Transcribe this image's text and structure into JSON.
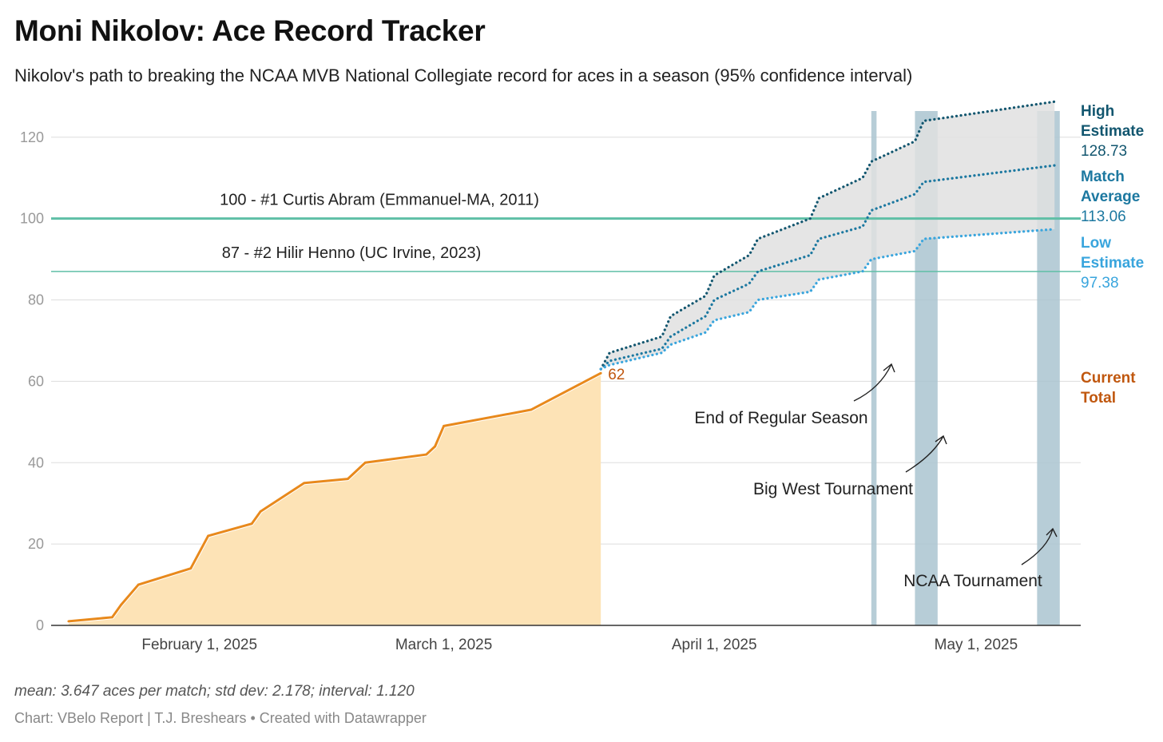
{
  "title": "Moni Nikolov: Ace Record Tracker",
  "subtitle": "Nikolov's path to breaking the NCAA MVB National Collegiate record for aces in a season (95% confidence interval)",
  "note": "mean: 3.647 aces per match; std dev: 2.178; interval: 1.120",
  "source": "Chart: VBelo Report | T.J. Breshears • Created with Datawrapper",
  "colors": {
    "actual_line": "#e8891c",
    "actual_fill": "#fde3b6",
    "high": "#12566f",
    "average": "#1c78a0",
    "low": "#39a5dd",
    "band": "#e0e0e0",
    "reference": "#5fbfa6",
    "shade": "#aac4d0",
    "current_label": "#c0570e"
  },
  "chart_data": {
    "type": "line",
    "ylim": [
      0,
      128
    ],
    "yticks": [
      "0",
      "20",
      "40",
      "60",
      "80",
      "100",
      "120"
    ],
    "xticks": [
      {
        "label": "February 1, 2025",
        "date": "2025-02-01"
      },
      {
        "label": "March 1, 2025",
        "date": "2025-03-01"
      },
      {
        "label": "April 1, 2025",
        "date": "2025-04-01"
      },
      {
        "label": "May 1, 2025",
        "date": "2025-05-01"
      }
    ],
    "reference_lines": [
      {
        "value": 100,
        "label": "100 - #1 Curtis Abram (Emmanuel-MA, 2011)"
      },
      {
        "value": 87,
        "label": "87 - #2 Hilir Henno (UC Irvine, 2023)"
      }
    ],
    "actual": {
      "name": "Current Total",
      "final_value": "62",
      "points": [
        [
          "2025-01-17",
          1
        ],
        [
          "2025-01-22",
          2
        ],
        [
          "2025-01-23",
          5
        ],
        [
          "2025-01-25",
          10
        ],
        [
          "2025-01-31",
          14
        ],
        [
          "2025-02-02",
          22
        ],
        [
          "2025-02-07",
          25
        ],
        [
          "2025-02-08",
          28
        ],
        [
          "2025-02-13",
          35
        ],
        [
          "2025-02-18",
          36
        ],
        [
          "2025-02-20",
          40
        ],
        [
          "2025-02-27",
          42
        ],
        [
          "2025-02-28",
          44
        ],
        [
          "2025-03-01",
          49
        ],
        [
          "2025-03-11",
          53
        ],
        [
          "2025-03-19",
          62
        ]
      ]
    },
    "projections": [
      {
        "name": "High Estimate",
        "final_value": "128.73",
        "points": [
          [
            "2025-03-19",
            63
          ],
          [
            "2025-03-20",
            67
          ],
          [
            "2025-03-26",
            71
          ],
          [
            "2025-03-27",
            76
          ],
          [
            "2025-03-31",
            81
          ],
          [
            "2025-04-01",
            86
          ],
          [
            "2025-04-05",
            91
          ],
          [
            "2025-04-06",
            95
          ],
          [
            "2025-04-12",
            100
          ],
          [
            "2025-04-13",
            105
          ],
          [
            "2025-04-18",
            110
          ],
          [
            "2025-04-19",
            114
          ],
          [
            "2025-04-24",
            119
          ],
          [
            "2025-04-25",
            124
          ],
          [
            "2025-05-10",
            128.73
          ]
        ]
      },
      {
        "name": "Match Average",
        "final_value": "113.06",
        "points": [
          [
            "2025-03-19",
            63
          ],
          [
            "2025-03-20",
            65
          ],
          [
            "2025-03-26",
            68
          ],
          [
            "2025-03-27",
            71
          ],
          [
            "2025-03-31",
            76
          ],
          [
            "2025-04-01",
            80
          ],
          [
            "2025-04-05",
            84
          ],
          [
            "2025-04-06",
            87
          ],
          [
            "2025-04-12",
            91
          ],
          [
            "2025-04-13",
            95
          ],
          [
            "2025-04-18",
            98
          ],
          [
            "2025-04-19",
            102
          ],
          [
            "2025-04-24",
            106
          ],
          [
            "2025-04-25",
            109
          ],
          [
            "2025-05-10",
            113.06
          ]
        ]
      },
      {
        "name": "Low Estimate",
        "final_value": "97.38",
        "points": [
          [
            "2025-03-19",
            63
          ],
          [
            "2025-03-20",
            64
          ],
          [
            "2025-03-26",
            67
          ],
          [
            "2025-03-27",
            69
          ],
          [
            "2025-03-31",
            72
          ],
          [
            "2025-04-01",
            75
          ],
          [
            "2025-04-05",
            77
          ],
          [
            "2025-04-06",
            80
          ],
          [
            "2025-04-12",
            82
          ],
          [
            "2025-04-13",
            85
          ],
          [
            "2025-04-18",
            87
          ],
          [
            "2025-04-19",
            90
          ],
          [
            "2025-04-24",
            92
          ],
          [
            "2025-04-25",
            95
          ],
          [
            "2025-05-10",
            97.38
          ]
        ]
      }
    ],
    "shaded_periods": [
      {
        "start": "2025-04-19",
        "end": "2025-04-19.6",
        "label": "End of Regular Season"
      },
      {
        "start": "2025-04-24",
        "end": "2025-04-26.6",
        "label": "Big West Tournament"
      },
      {
        "start": "2025-05-08",
        "end": "2025-05-10.6",
        "label": "NCAA Tournament"
      }
    ]
  }
}
